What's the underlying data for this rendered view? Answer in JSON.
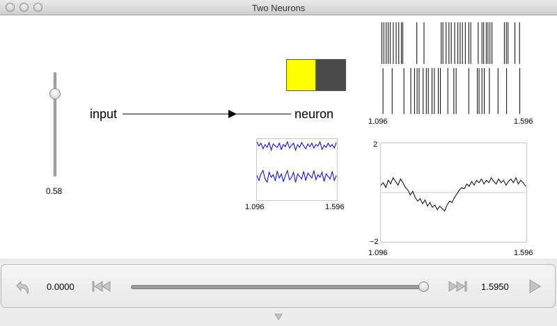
{
  "window": {
    "title": "Two Neurons"
  },
  "slider": {
    "value": "0.58"
  },
  "network": {
    "input_label": "input",
    "neuron_label": "neuron"
  },
  "colors": {
    "neuron_a": "#ffff00",
    "neuron_b": "#4a4a4a",
    "trace": "#0000cc"
  },
  "spike_raster": {
    "x_min": "1.096",
    "x_max": "1.596",
    "row1_spikes": [
      1.097,
      1.104,
      1.112,
      1.119,
      1.126,
      1.137,
      1.147,
      1.156,
      1.165,
      1.17,
      1.219,
      1.244,
      1.304,
      1.31,
      1.321,
      1.331,
      1.339,
      1.351,
      1.362,
      1.37,
      1.378,
      1.388,
      1.4,
      1.407,
      1.433,
      1.446,
      1.452,
      1.461,
      1.467,
      1.474,
      1.481,
      1.524,
      1.531,
      1.537,
      1.561,
      1.577
    ],
    "row2_spikes": [
      1.101,
      1.133,
      1.174,
      1.198,
      1.211,
      1.22,
      1.227,
      1.241,
      1.252,
      1.259,
      1.272,
      1.28,
      1.294,
      1.301,
      1.327,
      1.348,
      1.356,
      1.4,
      1.43,
      1.436,
      1.446,
      1.454,
      1.472,
      1.502,
      1.532,
      1.578
    ]
  },
  "voltage_plot": {
    "x_min": "1.096",
    "x_max": "1.596",
    "row1": [
      0.9,
      0.6,
      0.8,
      0.4,
      0.7,
      0.5,
      0.85,
      0.3,
      0.75,
      0.6,
      0.5,
      0.8,
      0.35,
      0.7,
      0.55,
      0.9,
      0.45,
      0.65,
      0.8,
      0.3,
      0.7,
      0.5,
      0.85,
      0.6,
      0.4,
      0.75,
      0.55,
      0.8,
      0.45,
      0.7,
      0.6,
      0.9,
      0.35,
      0.65,
      0.5,
      0.8,
      0.55,
      0.7,
      0.45,
      0.85
    ],
    "row2": [
      0.6,
      0.3,
      0.7,
      0.9,
      0.4,
      0.2,
      0.8,
      0.5,
      0.65,
      0.3,
      0.85,
      0.45,
      0.7,
      0.25,
      0.6,
      0.9,
      0.35,
      0.5,
      0.8,
      0.2,
      0.7,
      0.55,
      0.4,
      0.85,
      0.3,
      0.75,
      0.6,
      0.45,
      0.9,
      0.35,
      0.65,
      0.5,
      0.8,
      0.25,
      0.7,
      0.55,
      0.4,
      0.85,
      0.3,
      0.6
    ]
  },
  "decoded_plot": {
    "x_min": "1.096",
    "x_max": "1.596",
    "y_max": "2",
    "y_min": "−2",
    "values": [
      0.3,
      0.4,
      0.2,
      0.5,
      0.35,
      0.6,
      0.45,
      0.3,
      0.55,
      0.4,
      0.2,
      0.1,
      -0.1,
      0.05,
      -0.2,
      -0.35,
      -0.25,
      -0.45,
      -0.3,
      -0.55,
      -0.4,
      -0.6,
      -0.5,
      -0.7,
      -0.55,
      -0.65,
      -0.75,
      -0.5,
      -0.35,
      -0.4,
      -0.2,
      -0.05,
      0.1,
      0.2,
      0.15,
      0.35,
      0.25,
      0.45,
      0.3,
      0.5,
      0.4,
      0.55,
      0.35,
      0.5,
      0.4,
      0.6,
      0.45,
      0.35,
      0.55,
      0.4,
      0.5,
      0.3,
      0.45,
      0.55,
      0.4,
      0.6,
      0.35,
      0.5,
      0.4,
      0.25
    ]
  },
  "transport": {
    "start_time": "0.0000",
    "end_time": "1.5950",
    "progress": 1.0
  }
}
